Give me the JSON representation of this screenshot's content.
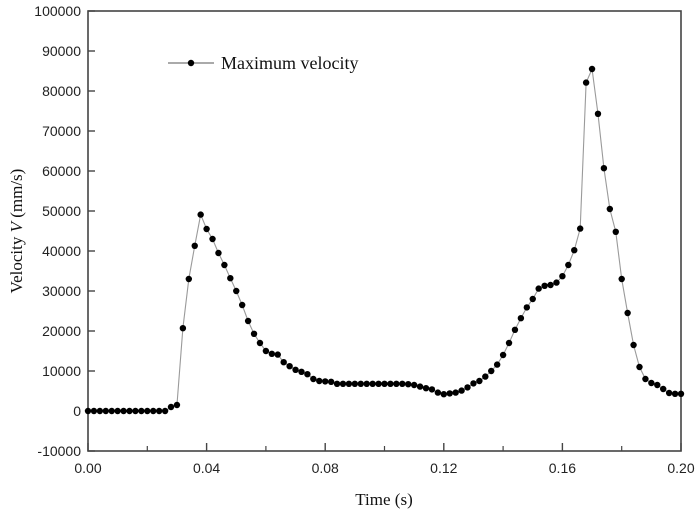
{
  "chart_data": {
    "type": "line",
    "title": "",
    "xlabel": "Time (s)",
    "ylabel_prefix": "Velocity ",
    "ylabel_var": "V",
    "ylabel_suffix": " (mm/s)",
    "xlim": [
      0.0,
      0.2
    ],
    "ylim": [
      -10000,
      100000
    ],
    "x_ticks": [
      0.0,
      0.04,
      0.08,
      0.12,
      0.16,
      0.2
    ],
    "x_tick_labels": [
      "0.00",
      "0.04",
      "0.08",
      "0.12",
      "0.16",
      "0.20"
    ],
    "x_minor_ticks": [
      0.02,
      0.06,
      0.1,
      0.14,
      0.18
    ],
    "y_ticks": [
      -10000,
      0,
      10000,
      20000,
      30000,
      40000,
      50000,
      60000,
      70000,
      80000,
      90000,
      100000
    ],
    "y_tick_labels": [
      "-10000",
      "0",
      "10000",
      "20000",
      "30000",
      "40000",
      "50000",
      "60000",
      "70000",
      "80000",
      "90000",
      "100000"
    ],
    "grid": false,
    "legend": {
      "position": "top-left",
      "entries": [
        "Maximum velocity"
      ]
    },
    "series": [
      {
        "name": "Maximum velocity",
        "color": "#000000",
        "line_color": "#9a9a9a",
        "x_start": 0.0,
        "x_step": 0.002,
        "values": [
          0,
          0,
          0,
          0,
          0,
          0,
          0,
          0,
          0,
          0,
          0,
          0,
          0,
          0,
          1000,
          1500,
          20700,
          33000,
          41300,
          49100,
          45500,
          43000,
          39500,
          36500,
          33200,
          30000,
          26500,
          22500,
          19300,
          17000,
          15000,
          14300,
          14100,
          12200,
          11200,
          10300,
          9800,
          9200,
          8000,
          7500,
          7400,
          7300,
          6800,
          6800,
          6800,
          6800,
          6800,
          6800,
          6800,
          6800,
          6800,
          6800,
          6800,
          6800,
          6700,
          6500,
          6100,
          5700,
          5400,
          4600,
          4200,
          4400,
          4600,
          5100,
          5900,
          6900,
          7500,
          8600,
          10000,
          11600,
          14000,
          17000,
          20300,
          23200,
          25900,
          28000,
          30600,
          31300,
          31500,
          32100,
          33700,
          36500,
          40200,
          45600,
          82100,
          85500,
          74300,
          60700,
          50500,
          44800,
          33000,
          24500,
          16500,
          11000,
          8000,
          7000,
          6500,
          5500,
          4500,
          4300,
          4300
        ]
      }
    ]
  }
}
